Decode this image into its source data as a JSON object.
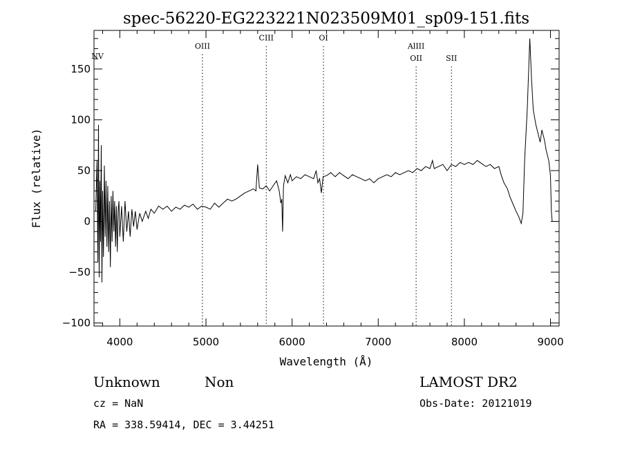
{
  "chart_data": {
    "type": "line",
    "title": "spec-56220-EG223221N023509M01_sp09-151.fits",
    "xlabel": "Wavelength (Å)",
    "ylabel": "Flux (relative)",
    "xlim": [
      3700,
      9100
    ],
    "ylim": [
      -103,
      188
    ],
    "xticks": [
      4000,
      5000,
      6000,
      7000,
      8000,
      9000
    ],
    "yticks": [
      -100,
      -50,
      0,
      50,
      100,
      150
    ],
    "line_color": "#000000",
    "marker_color": "#000000",
    "markers": [
      {
        "label": "NV",
        "x": 3740,
        "label_y": 160
      },
      {
        "label": "OIII",
        "x": 4959,
        "label_y": 170
      },
      {
        "label": "CIII",
        "x": 5700,
        "label_y": 178
      },
      {
        "label": "OI",
        "x": 6364,
        "label_y": 178
      },
      {
        "label": "AlIII",
        "x": 7440,
        "label_y": 170
      },
      {
        "label": "OII",
        "x": 7440,
        "label_y": 158
      },
      {
        "label": "SII",
        "x": 7850,
        "label_y": 158
      }
    ],
    "series": [
      {
        "values": [
          [
            3720,
            10
          ],
          [
            3735,
            60
          ],
          [
            3745,
            -40
          ],
          [
            3752,
            95
          ],
          [
            3760,
            -55
          ],
          [
            3768,
            40
          ],
          [
            3776,
            -20
          ],
          [
            3784,
            75
          ],
          [
            3792,
            -60
          ],
          [
            3800,
            30
          ],
          [
            3810,
            -35
          ],
          [
            3820,
            55
          ],
          [
            3830,
            -15
          ],
          [
            3840,
            40
          ],
          [
            3850,
            -25
          ],
          [
            3860,
            35
          ],
          [
            3870,
            -30
          ],
          [
            3880,
            20
          ],
          [
            3890,
            -45
          ],
          [
            3900,
            25
          ],
          [
            3910,
            -20
          ],
          [
            3920,
            30
          ],
          [
            3930,
            -10
          ],
          [
            3940,
            20
          ],
          [
            3950,
            -25
          ],
          [
            3960,
            15
          ],
          [
            3970,
            -30
          ],
          [
            3980,
            10
          ],
          [
            3990,
            20
          ],
          [
            4000,
            -15
          ],
          [
            4020,
            15
          ],
          [
            4040,
            -20
          ],
          [
            4060,
            20
          ],
          [
            4080,
            -10
          ],
          [
            4100,
            10
          ],
          [
            4120,
            -15
          ],
          [
            4140,
            12
          ],
          [
            4160,
            -5
          ],
          [
            4180,
            10
          ],
          [
            4200,
            -8
          ],
          [
            4230,
            8
          ],
          [
            4260,
            0
          ],
          [
            4300,
            10
          ],
          [
            4330,
            3
          ],
          [
            4360,
            12
          ],
          [
            4400,
            8
          ],
          [
            4450,
            15
          ],
          [
            4500,
            12
          ],
          [
            4550,
            15
          ],
          [
            4600,
            10
          ],
          [
            4650,
            14
          ],
          [
            4700,
            12
          ],
          [
            4750,
            16
          ],
          [
            4800,
            14
          ],
          [
            4850,
            17
          ],
          [
            4900,
            12
          ],
          [
            4950,
            15
          ],
          [
            5000,
            14
          ],
          [
            5050,
            12
          ],
          [
            5100,
            18
          ],
          [
            5150,
            14
          ],
          [
            5200,
            18
          ],
          [
            5250,
            22
          ],
          [
            5300,
            20
          ],
          [
            5350,
            22
          ],
          [
            5400,
            25
          ],
          [
            5450,
            28
          ],
          [
            5500,
            30
          ],
          [
            5550,
            32
          ],
          [
            5580,
            30
          ],
          [
            5600,
            56
          ],
          [
            5620,
            33
          ],
          [
            5660,
            32
          ],
          [
            5700,
            35
          ],
          [
            5740,
            30
          ],
          [
            5780,
            35
          ],
          [
            5820,
            40
          ],
          [
            5850,
            30
          ],
          [
            5870,
            18
          ],
          [
            5880,
            22
          ],
          [
            5890,
            -10
          ],
          [
            5900,
            35
          ],
          [
            5920,
            45
          ],
          [
            5950,
            38
          ],
          [
            5980,
            46
          ],
          [
            6000,
            40
          ],
          [
            6050,
            44
          ],
          [
            6100,
            42
          ],
          [
            6150,
            46
          ],
          [
            6200,
            44
          ],
          [
            6250,
            42
          ],
          [
            6280,
            50
          ],
          [
            6300,
            38
          ],
          [
            6320,
            42
          ],
          [
            6340,
            28
          ],
          [
            6360,
            44
          ],
          [
            6400,
            45
          ],
          [
            6450,
            48
          ],
          [
            6500,
            44
          ],
          [
            6550,
            48
          ],
          [
            6600,
            45
          ],
          [
            6650,
            42
          ],
          [
            6700,
            46
          ],
          [
            6750,
            44
          ],
          [
            6800,
            42
          ],
          [
            6850,
            40
          ],
          [
            6900,
            42
          ],
          [
            6950,
            38
          ],
          [
            7000,
            42
          ],
          [
            7050,
            44
          ],
          [
            7100,
            46
          ],
          [
            7150,
            44
          ],
          [
            7200,
            48
          ],
          [
            7250,
            46
          ],
          [
            7300,
            48
          ],
          [
            7350,
            50
          ],
          [
            7400,
            48
          ],
          [
            7450,
            52
          ],
          [
            7500,
            50
          ],
          [
            7550,
            54
          ],
          [
            7600,
            52
          ],
          [
            7630,
            60
          ],
          [
            7650,
            52
          ],
          [
            7700,
            54
          ],
          [
            7750,
            56
          ],
          [
            7800,
            50
          ],
          [
            7850,
            56
          ],
          [
            7900,
            54
          ],
          [
            7950,
            58
          ],
          [
            8000,
            56
          ],
          [
            8050,
            58
          ],
          [
            8100,
            56
          ],
          [
            8150,
            60
          ],
          [
            8200,
            57
          ],
          [
            8250,
            54
          ],
          [
            8300,
            56
          ],
          [
            8350,
            52
          ],
          [
            8400,
            54
          ],
          [
            8430,
            45
          ],
          [
            8460,
            38
          ],
          [
            8500,
            32
          ],
          [
            8530,
            24
          ],
          [
            8560,
            18
          ],
          [
            8600,
            10
          ],
          [
            8630,
            5
          ],
          [
            8660,
            -2
          ],
          [
            8680,
            8
          ],
          [
            8700,
            60
          ],
          [
            8730,
            110
          ],
          [
            8760,
            180
          ],
          [
            8780,
            140
          ],
          [
            8800,
            110
          ],
          [
            8830,
            95
          ],
          [
            8860,
            85
          ],
          [
            8880,
            78
          ],
          [
            8900,
            90
          ],
          [
            8930,
            80
          ],
          [
            8950,
            70
          ],
          [
            8980,
            60
          ],
          [
            9000,
            45
          ],
          [
            9010,
            10
          ],
          [
            9020,
            0
          ]
        ]
      }
    ]
  },
  "info": {
    "class": "Unknown",
    "subclass": "Non",
    "survey": "LAMOST DR2",
    "cz": "cz = NaN",
    "obs_date": "Obs-Date: 20121019",
    "radec": "RA = 338.59414, DEC =   3.44251"
  }
}
